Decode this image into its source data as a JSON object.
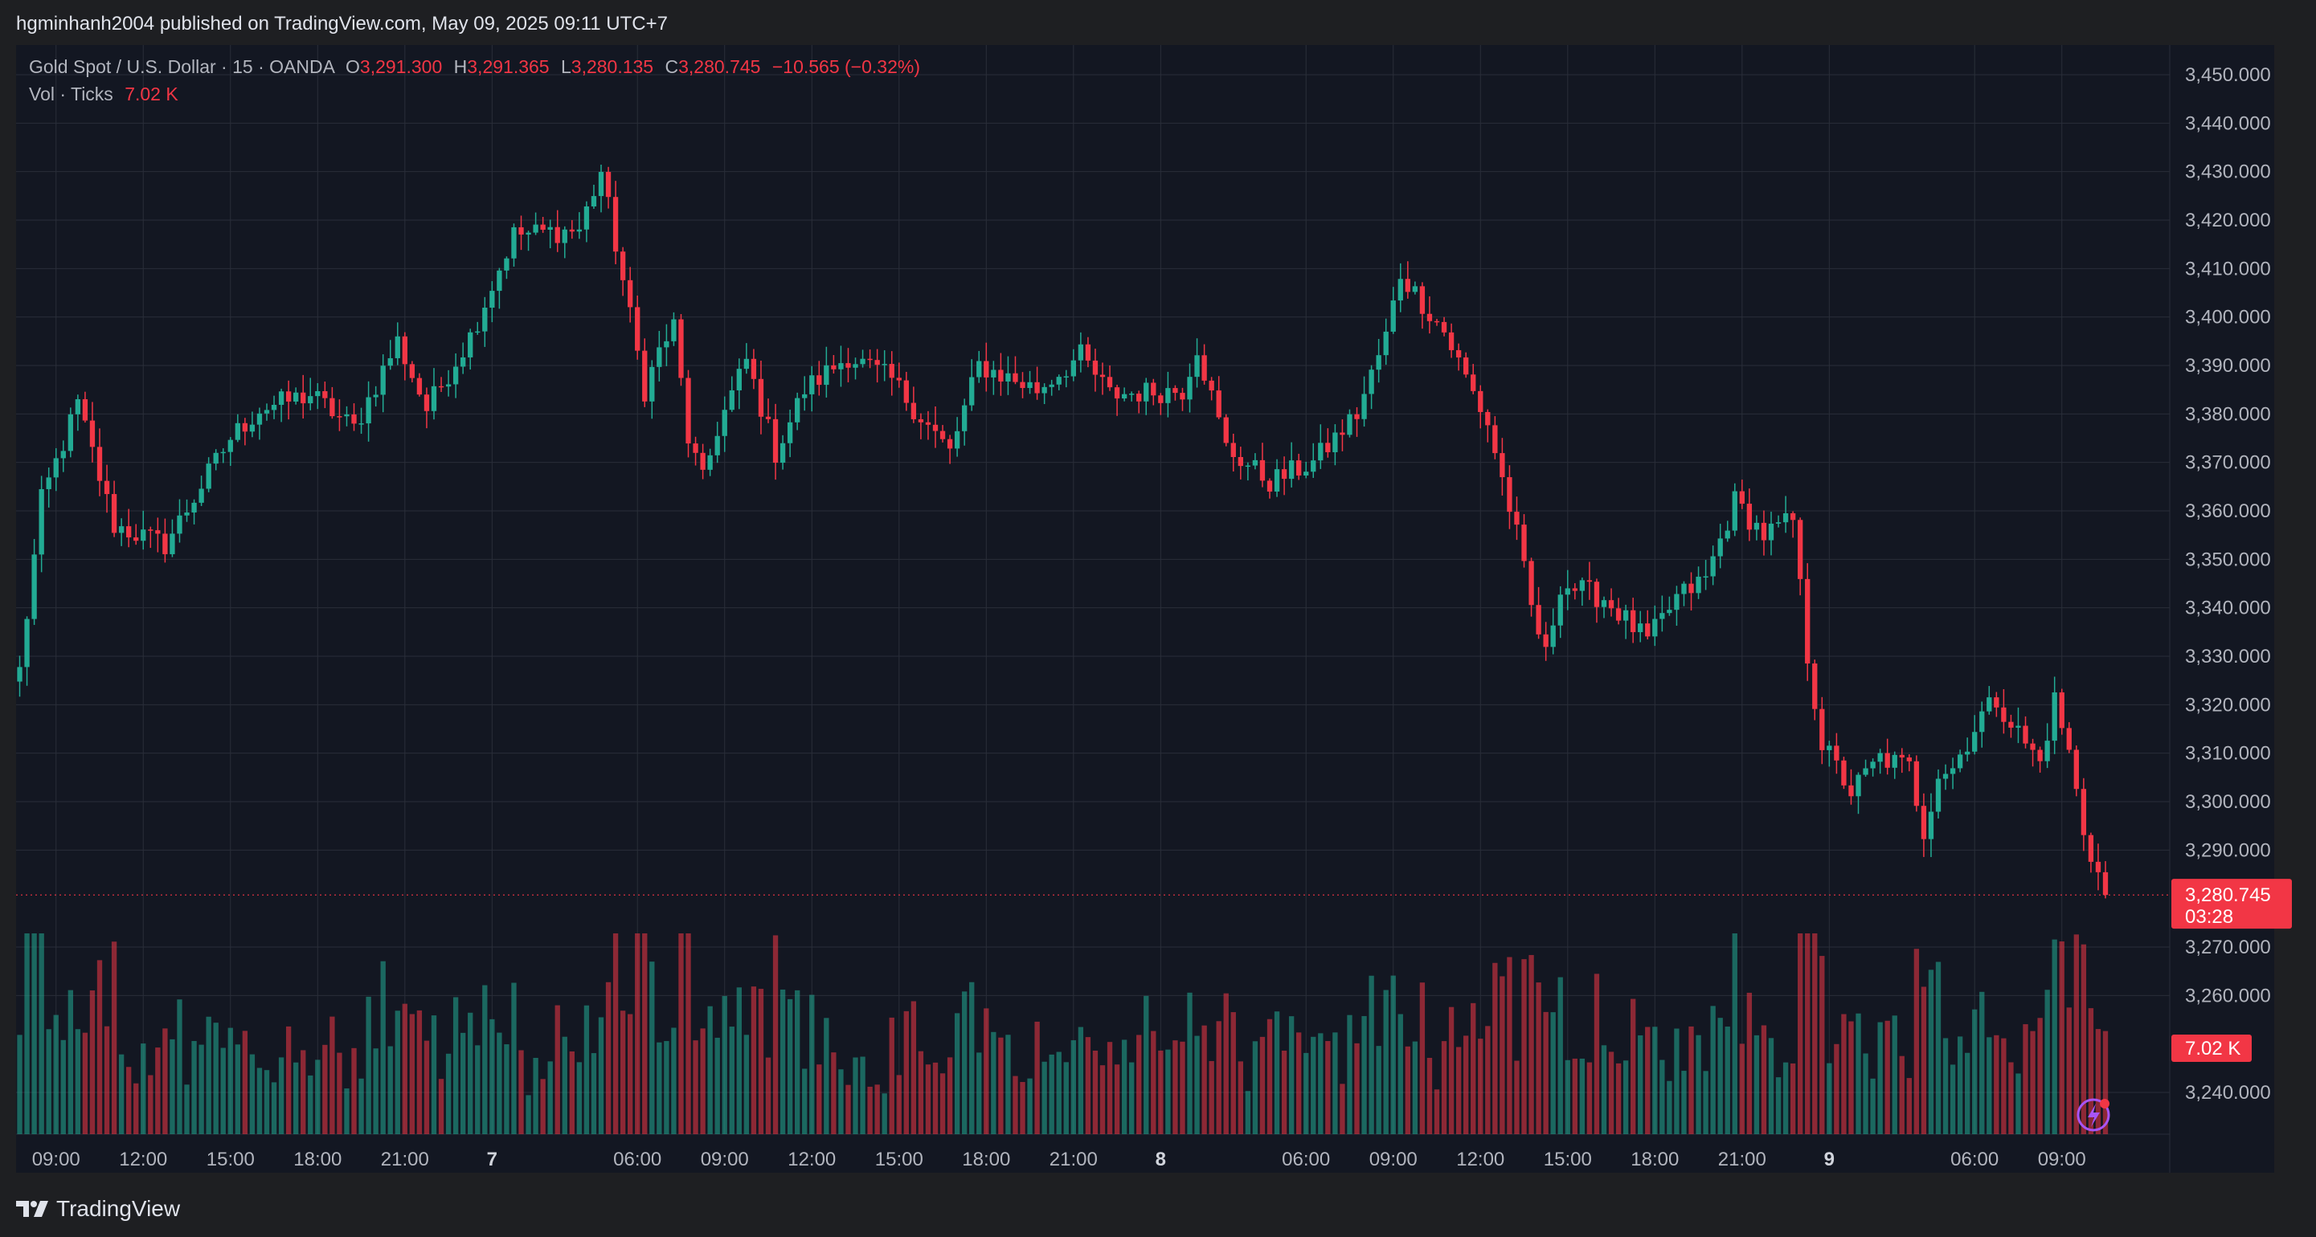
{
  "publish_line": "hgminhanh2004 published on TradingView.com, May 09, 2025 09:11 UTC+7",
  "brand": "TradingView",
  "legend": {
    "symbol": "Gold Spot / U.S. Dollar · 15 · OANDA",
    "o_label": "O",
    "o_value": "3,291.300",
    "h_label": "H",
    "h_value": "3,291.365",
    "l_label": "L",
    "l_value": "3,280.135",
    "c_label": "C",
    "c_value": "3,280.745",
    "change": "−10.565 (−0.32%)",
    "vol_label": "Vol · Ticks",
    "vol_value": "7.02 K"
  },
  "price_tag": {
    "price": "3,280.745",
    "countdown": "03:28"
  },
  "volume_tag": "7.02 K",
  "colors": {
    "background": "#131722",
    "up": "#22ab94",
    "down": "#f23645",
    "volume_up": "#22ab94",
    "volume_down": "#f23645",
    "grid": "#2a2e39",
    "axis_text": "#b2b5be"
  },
  "chart_data": {
    "type": "candlestick",
    "title": "Gold Spot / U.S. Dollar · 15 · OANDA",
    "interval": "15",
    "y_ticks": [
      "3,450.000",
      "3,440.000",
      "3,430.000",
      "3,420.000",
      "3,410.000",
      "3,400.000",
      "3,390.000",
      "3,380.000",
      "3,370.000",
      "3,360.000",
      "3,350.000",
      "3,340.000",
      "3,330.000",
      "3,320.000",
      "3,310.000",
      "3,300.000",
      "3,290.000",
      "3,270.000",
      "3,260.000",
      "3,240.000"
    ],
    "y_tick_values": [
      3450,
      3440,
      3430,
      3420,
      3410,
      3400,
      3390,
      3380,
      3370,
      3360,
      3350,
      3340,
      3330,
      3320,
      3310,
      3300,
      3290,
      3270,
      3260,
      3240
    ],
    "x_ticks": [
      {
        "label": "09:00",
        "bold": false,
        "index": 5
      },
      {
        "label": "12:00",
        "bold": false,
        "index": 17
      },
      {
        "label": "15:00",
        "bold": false,
        "index": 29
      },
      {
        "label": "18:00",
        "bold": false,
        "index": 41
      },
      {
        "label": "21:00",
        "bold": false,
        "index": 53
      },
      {
        "label": "7",
        "bold": true,
        "index": 65
      },
      {
        "label": "06:00",
        "bold": false,
        "index": 85
      },
      {
        "label": "09:00",
        "bold": false,
        "index": 97
      },
      {
        "label": "12:00",
        "bold": false,
        "index": 109
      },
      {
        "label": "15:00",
        "bold": false,
        "index": 121
      },
      {
        "label": "18:00",
        "bold": false,
        "index": 133
      },
      {
        "label": "21:00",
        "bold": false,
        "index": 145
      },
      {
        "label": "8",
        "bold": true,
        "index": 157
      },
      {
        "label": "06:00",
        "bold": false,
        "index": 177
      },
      {
        "label": "09:00",
        "bold": false,
        "index": 189
      },
      {
        "label": "12:00",
        "bold": false,
        "index": 201
      },
      {
        "label": "15:00",
        "bold": false,
        "index": 213
      },
      {
        "label": "18:00",
        "bold": false,
        "index": 225
      },
      {
        "label": "21:00",
        "bold": false,
        "index": 237
      },
      {
        "label": "9",
        "bold": true,
        "index": 249
      },
      {
        "label": "06:00",
        "bold": false,
        "index": 269
      },
      {
        "label": "09:00",
        "bold": false,
        "index": 281
      }
    ],
    "last_price": 3280.745,
    "key_points": [
      {
        "index": 0,
        "price": 3327
      },
      {
        "index": 3,
        "price": 3362
      },
      {
        "index": 8,
        "price": 3382
      },
      {
        "index": 13,
        "price": 3357
      },
      {
        "index": 20,
        "price": 3353
      },
      {
        "index": 29,
        "price": 3375
      },
      {
        "index": 33,
        "price": 3381
      },
      {
        "index": 40,
        "price": 3384
      },
      {
        "index": 46,
        "price": 3377
      },
      {
        "index": 52,
        "price": 3395
      },
      {
        "index": 56,
        "price": 3381
      },
      {
        "index": 62,
        "price": 3396
      },
      {
        "index": 68,
        "price": 3417
      },
      {
        "index": 77,
        "price": 3418
      },
      {
        "index": 80,
        "price": 3430
      },
      {
        "index": 82,
        "price": 3415
      },
      {
        "index": 86,
        "price": 3385
      },
      {
        "index": 88,
        "price": 3393
      },
      {
        "index": 90,
        "price": 3398
      },
      {
        "index": 92,
        "price": 3375
      },
      {
        "index": 94,
        "price": 3366
      },
      {
        "index": 96,
        "price": 3377
      },
      {
        "index": 100,
        "price": 3391
      },
      {
        "index": 104,
        "price": 3372
      },
      {
        "index": 108,
        "price": 3385
      },
      {
        "index": 114,
        "price": 3392
      },
      {
        "index": 120,
        "price": 3387
      },
      {
        "index": 128,
        "price": 3372
      },
      {
        "index": 132,
        "price": 3390
      },
      {
        "index": 140,
        "price": 3385
      },
      {
        "index": 146,
        "price": 3392
      },
      {
        "index": 150,
        "price": 3384
      },
      {
        "index": 160,
        "price": 3385
      },
      {
        "index": 162,
        "price": 3394
      },
      {
        "index": 166,
        "price": 3373
      },
      {
        "index": 172,
        "price": 3366
      },
      {
        "index": 178,
        "price": 3370
      },
      {
        "index": 184,
        "price": 3380
      },
      {
        "index": 188,
        "price": 3396
      },
      {
        "index": 190,
        "price": 3409
      },
      {
        "index": 196,
        "price": 3397
      },
      {
        "index": 202,
        "price": 3378
      },
      {
        "index": 206,
        "price": 3355
      },
      {
        "index": 208,
        "price": 3340
      },
      {
        "index": 210,
        "price": 3330
      },
      {
        "index": 212,
        "price": 3345
      },
      {
        "index": 218,
        "price": 3342
      },
      {
        "index": 224,
        "price": 3333
      },
      {
        "index": 228,
        "price": 3342
      },
      {
        "index": 232,
        "price": 3346
      },
      {
        "index": 236,
        "price": 3362
      },
      {
        "index": 240,
        "price": 3355
      },
      {
        "index": 244,
        "price": 3358
      },
      {
        "index": 246,
        "price": 3330
      },
      {
        "index": 248,
        "price": 3312
      },
      {
        "index": 252,
        "price": 3302
      },
      {
        "index": 256,
        "price": 3309
      },
      {
        "index": 260,
        "price": 3307
      },
      {
        "index": 262,
        "price": 3294
      },
      {
        "index": 264,
        "price": 3306
      },
      {
        "index": 266,
        "price": 3307
      },
      {
        "index": 270,
        "price": 3318
      },
      {
        "index": 272,
        "price": 3321
      },
      {
        "index": 276,
        "price": 3312
      },
      {
        "index": 278,
        "price": 3308
      },
      {
        "index": 280,
        "price": 3321
      },
      {
        "index": 282,
        "price": 3310
      },
      {
        "index": 284,
        "price": 3294
      },
      {
        "index": 286,
        "price": 3285
      },
      {
        "index": 287,
        "price": 3280.745
      }
    ]
  }
}
